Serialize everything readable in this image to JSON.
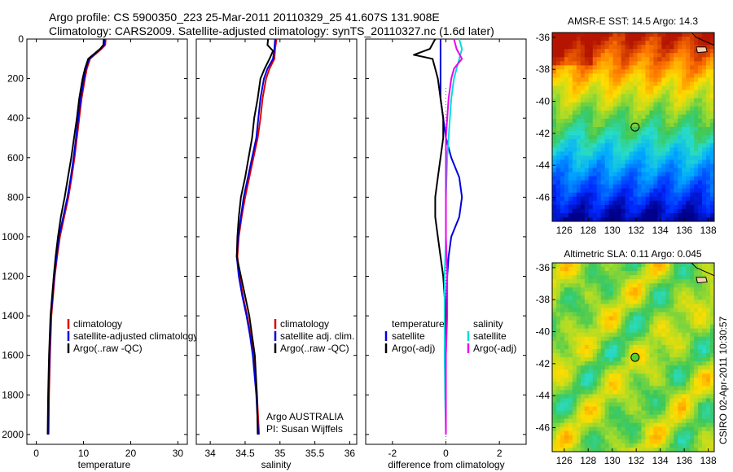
{
  "header": {
    "line1": "Argo profile: CS 5900350_223 25-Mar-2011 20110329_25 41.607S 131.908E",
    "line2": "Climatology: CARS2009. Satellite-adjusted climatology: synTS_20110327.nc (1.6d later)"
  },
  "colors": {
    "climatology": "#dd0000",
    "satellite": "#0000dd",
    "argo": "#000000",
    "satellite_salinity": "#00dddd",
    "argo_salinity_adj": "#ee00ee",
    "float_marker_sst": "#ff9900",
    "float_marker_sla": "#55cc33"
  },
  "chart_data": [
    {
      "type": "line",
      "xlabel": "temperature",
      "ylabel": "",
      "xlim": [
        -2,
        32
      ],
      "ylim": [
        2050,
        0
      ],
      "xticks": [
        0,
        10,
        20,
        30
      ],
      "yticks": [
        0,
        200,
        400,
        600,
        800,
        1000,
        1200,
        1400,
        1600,
        1800,
        2000
      ],
      "legend": [
        "climatology",
        "satellite-adjusted climatology",
        "Argo(..raw -QC)"
      ],
      "series": [
        {
          "name": "climatology",
          "depth": [
            0,
            30,
            50,
            100,
            150,
            200,
            300,
            400,
            500,
            600,
            700,
            800,
            900,
            1000,
            1100,
            1200,
            1400,
            1600,
            1800,
            2000
          ],
          "values": [
            14.7,
            14.6,
            13.8,
            11.4,
            10.7,
            10.3,
            9.6,
            9.1,
            8.6,
            8.1,
            7.5,
            6.8,
            5.9,
            5.0,
            4.4,
            3.9,
            3.2,
            2.9,
            2.7,
            2.6
          ]
        },
        {
          "name": "satellite-adjusted climatology",
          "depth": [
            0,
            30,
            50,
            100,
            150,
            200,
            300,
            400,
            500,
            600,
            700,
            800,
            900,
            1000,
            1100,
            1200,
            1400,
            1600,
            1800,
            2000
          ],
          "values": [
            14.5,
            14.4,
            13.6,
            11.2,
            10.5,
            10.1,
            9.4,
            8.9,
            8.4,
            7.9,
            7.3,
            6.6,
            5.7,
            4.8,
            4.3,
            3.8,
            3.1,
            2.8,
            2.6,
            2.5
          ]
        },
        {
          "name": "Argo(..raw -QC)",
          "depth": [
            0,
            30,
            50,
            100,
            150,
            200,
            300,
            400,
            500,
            600,
            700,
            800,
            900,
            1000,
            1100,
            1200,
            1400,
            1600,
            1800,
            2000
          ],
          "values": [
            14.3,
            14.2,
            13.5,
            11.0,
            10.3,
            9.8,
            9.1,
            8.6,
            8.0,
            7.4,
            6.7,
            6.0,
            5.2,
            4.6,
            4.1,
            3.7,
            3.0,
            2.7,
            2.5,
            2.4
          ]
        }
      ]
    },
    {
      "type": "line",
      "xlabel": "salinity",
      "ylabel": "",
      "xlim": [
        33.8,
        36.1
      ],
      "ylim": [
        2050,
        0
      ],
      "xticks": [
        34,
        34.5,
        35,
        35.5,
        36
      ],
      "legend": [
        "climatology",
        "satellite adj. clim.",
        "Argo(..raw -QC)"
      ],
      "annotation": [
        "Argo AUSTRALIA",
        "PI: Susan Wijffels"
      ],
      "series": [
        {
          "name": "climatology",
          "depth": [
            0,
            50,
            100,
            150,
            200,
            300,
            400,
            500,
            600,
            700,
            800,
            900,
            1000,
            1100,
            1200,
            1300,
            1400,
            1500,
            1600,
            1800,
            2000
          ],
          "values": [
            34.95,
            34.93,
            34.92,
            34.85,
            34.8,
            34.75,
            34.72,
            34.68,
            34.62,
            34.56,
            34.5,
            34.45,
            34.41,
            34.39,
            34.42,
            34.47,
            34.53,
            34.58,
            34.62,
            34.67,
            34.7
          ]
        },
        {
          "name": "satellite adj. clim.",
          "depth": [
            0,
            50,
            100,
            150,
            200,
            300,
            400,
            500,
            600,
            700,
            800,
            900,
            1000,
            1100,
            1200,
            1300,
            1400,
            1500,
            1600,
            1800,
            2000
          ],
          "values": [
            34.93,
            34.92,
            34.9,
            34.82,
            34.77,
            34.72,
            34.69,
            34.66,
            34.6,
            34.54,
            34.48,
            34.44,
            34.4,
            34.38,
            34.41,
            34.46,
            34.52,
            34.57,
            34.61,
            34.66,
            34.69
          ]
        },
        {
          "name": "Argo(..raw -QC)",
          "depth": [
            0,
            30,
            60,
            100,
            150,
            200,
            300,
            400,
            500,
            600,
            700,
            800,
            900,
            1000,
            1100,
            1200,
            1300,
            1400,
            1500,
            1600,
            1800,
            2000
          ],
          "values": [
            34.83,
            34.82,
            34.9,
            34.85,
            34.78,
            34.72,
            34.68,
            34.63,
            34.6,
            34.55,
            34.5,
            34.44,
            34.41,
            34.39,
            34.38,
            34.44,
            34.5,
            34.56,
            34.6,
            34.64,
            34.67,
            34.68
          ]
        }
      ]
    },
    {
      "type": "line",
      "xlabel": "difference from climatology",
      "ylabel": "",
      "xlim": [
        -3,
        3
      ],
      "ylim": [
        2050,
        0
      ],
      "xticks": [
        -2,
        0,
        2
      ],
      "legend": {
        "temperature": {
          "title": "temperature",
          "items": [
            "satellite",
            "Argo(-adj)"
          ]
        },
        "salinity": {
          "title": "salinity",
          "items": [
            "satellite",
            "Argo(-adj)"
          ]
        }
      },
      "series": [
        {
          "name": "temperature satellite",
          "depth": [
            0,
            50,
            100,
            150,
            200,
            300,
            400,
            500,
            600,
            700,
            800,
            900,
            1000,
            1100,
            1200,
            1400,
            1600,
            1800,
            2000
          ],
          "values": [
            -0.2,
            -0.2,
            -0.2,
            -0.2,
            -0.2,
            -0.2,
            -0.1,
            0.0,
            0.2,
            0.5,
            0.6,
            0.5,
            0.2,
            0.1,
            0.05,
            0.0,
            0.0,
            0.0,
            0.0
          ]
        },
        {
          "name": "temperature Argo(-adj)",
          "depth": [
            0,
            50,
            80,
            100,
            150,
            200,
            300,
            400,
            500,
            600,
            700,
            800,
            900,
            1000,
            1100,
            1200,
            1400,
            1600,
            1800,
            2000
          ],
          "values": [
            -0.4,
            -0.6,
            -1.2,
            -0.5,
            -0.4,
            -0.3,
            -0.2,
            -0.1,
            -0.1,
            -0.2,
            -0.3,
            -0.4,
            -0.4,
            -0.3,
            -0.2,
            -0.1,
            0.0,
            0.0,
            0.0,
            0.0
          ]
        },
        {
          "name": "salinity satellite",
          "depth": [
            0,
            50,
            100,
            150,
            200,
            300,
            400,
            500,
            600,
            800,
            1000,
            1200,
            1400,
            1600,
            1800,
            2000
          ],
          "values": [
            0.5,
            0.6,
            0.5,
            0.4,
            0.3,
            0.2,
            0.15,
            0.1,
            0.05,
            0.0,
            0.0,
            -0.05,
            -0.05,
            -0.05,
            -0.03,
            0.0
          ]
        },
        {
          "name": "salinity Argo(-adj)",
          "depth": [
            0,
            50,
            100,
            150,
            200,
            300,
            400,
            500,
            600,
            800,
            1000,
            1200,
            1400,
            1600,
            1800,
            2000
          ],
          "values": [
            0.3,
            0.4,
            0.6,
            0.3,
            0.2,
            0.1,
            0.05,
            0.0,
            0.0,
            0.0,
            0.0,
            0.05,
            0.05,
            0.0,
            0.0,
            0.0
          ]
        }
      ]
    }
  ],
  "maps": [
    {
      "type": "heatmap",
      "title": "AMSR-E SST: 14.5 Argo: 14.3",
      "variable": "sst",
      "xlim": [
        125,
        138.5
      ],
      "ylim": [
        -47.5,
        -35.7
      ],
      "xticks": [
        126,
        128,
        130,
        132,
        134,
        136,
        138
      ],
      "yticks": [
        -36,
        -38,
        -40,
        -42,
        -44,
        -46
      ],
      "float_lon": 131.908,
      "float_lat": -41.607
    },
    {
      "type": "heatmap",
      "title": "Altimetric SLA: 0.11 Argo: 0.045",
      "variable": "sla",
      "xlim": [
        125,
        138.5
      ],
      "ylim": [
        -47.5,
        -35.7
      ],
      "xticks": [
        126,
        128,
        130,
        132,
        134,
        136,
        138
      ],
      "yticks": [
        -36,
        -38,
        -40,
        -42,
        -44,
        -46
      ],
      "float_lon": 131.908,
      "float_lat": -41.607
    }
  ],
  "footer": {
    "credit": "CSIRO 02-Apr-2011 10:30:57"
  }
}
